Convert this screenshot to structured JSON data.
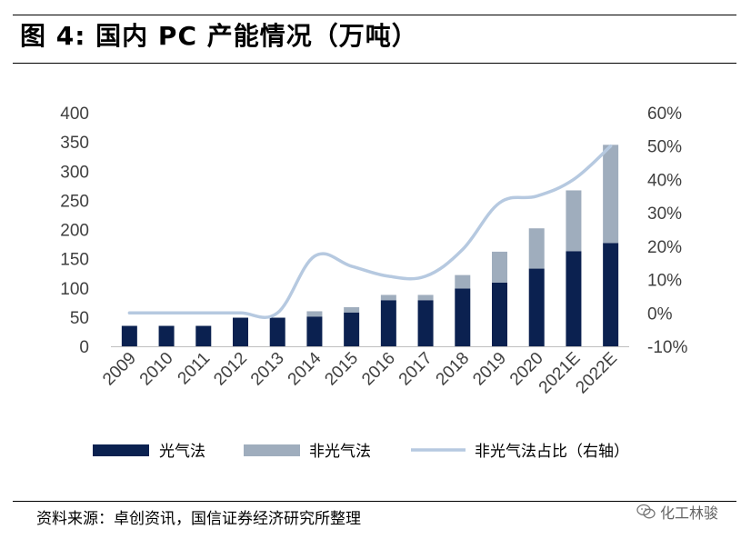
{
  "header": {
    "title": "图 4:  国内 PC 产能情况（万吨）"
  },
  "footer": {
    "source": "资料来源：卓创资讯，国信证券经济研究所整理"
  },
  "watermark": {
    "text": "化工林骏",
    "icon": "wechat-icon"
  },
  "colors": {
    "photo": "#0b2150",
    "nonphoto": "#9fadbd",
    "share_line": "#b6c9e0"
  },
  "chart_data": {
    "type": "bar",
    "stacked": true,
    "categories": [
      "2009",
      "2010",
      "2011",
      "2012",
      "2013",
      "2014",
      "2015",
      "2016",
      "2017",
      "2018",
      "2019",
      "2020",
      "2021E",
      "2022E"
    ],
    "series": [
      {
        "name": "光气法",
        "type": "bar",
        "axis": "left",
        "values": [
          35,
          35,
          35,
          49,
          49,
          51,
          58,
          79,
          79,
          99,
          109,
          133,
          163,
          177
        ]
      },
      {
        "name": "非光气法",
        "type": "bar",
        "axis": "left",
        "values": [
          0,
          0,
          0,
          0,
          0,
          9,
          9,
          9,
          9,
          23,
          53,
          69,
          104,
          168
        ]
      },
      {
        "name": "非光气法占比（右轴）",
        "type": "line",
        "axis": "right",
        "values": [
          0,
          0,
          0,
          0,
          0,
          17,
          14,
          11,
          11,
          19,
          33,
          35,
          40,
          50
        ]
      }
    ],
    "y_left": {
      "min": 0,
      "max": 400,
      "step": 50,
      "ticks": [
        "0",
        "50",
        "100",
        "150",
        "200",
        "250",
        "300",
        "350",
        "400"
      ]
    },
    "y_right": {
      "min": -10,
      "max": 60,
      "step": 10,
      "ticks": [
        "-10%",
        "0%",
        "10%",
        "20%",
        "30%",
        "40%",
        "50%",
        "60%"
      ]
    },
    "grid": false,
    "legend": "bottom"
  }
}
